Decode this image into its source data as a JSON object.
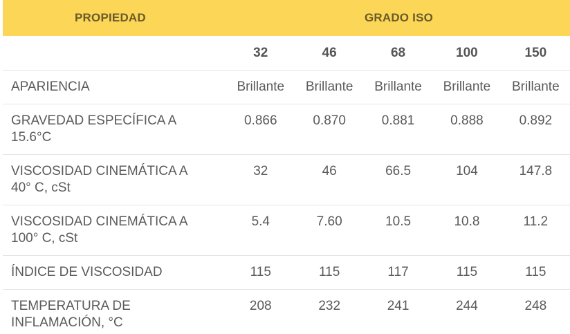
{
  "header": {
    "property": "PROPIEDAD",
    "grade_group": "GRADO ISO"
  },
  "grades": [
    "32",
    "46",
    "68",
    "100",
    "150"
  ],
  "rows": [
    {
      "property_lines": [
        "APARIENCIA"
      ],
      "values": [
        "Brillante",
        "Brillante",
        "Brillante",
        "Brillante",
        "Brillante"
      ]
    },
    {
      "property_lines": [
        "GRAVEDAD ESPECÍFICA A",
        "15.6°C"
      ],
      "values": [
        "0.866",
        "0.870",
        "0.881",
        "0.888",
        "0.892"
      ]
    },
    {
      "property_lines": [
        "VISCOSIDAD CINEMÁTICA A",
        "40° C, cSt"
      ],
      "values": [
        "32",
        "46",
        "66.5",
        "104",
        "147.8"
      ]
    },
    {
      "property_lines": [
        "VISCOSIDAD CINEMÁTICA A",
        "100° C, cSt"
      ],
      "values": [
        "5.4",
        "7.60",
        "10.5",
        "10.8",
        "11.2"
      ]
    },
    {
      "property_lines": [
        "ÍNDICE DE VISCOSIDAD"
      ],
      "values": [
        "115",
        "115",
        "117",
        "115",
        "115"
      ]
    },
    {
      "property_lines": [
        "TEMPERATURA DE",
        "INFLAMACIÓN, °C"
      ],
      "values": [
        "208",
        "232",
        "241",
        "244",
        "248"
      ]
    }
  ],
  "colors": {
    "header_bg": "#fbd657",
    "header_text": "#6b5a2a",
    "body_text": "#5a5a5a",
    "divider": "#e4e4e4"
  }
}
